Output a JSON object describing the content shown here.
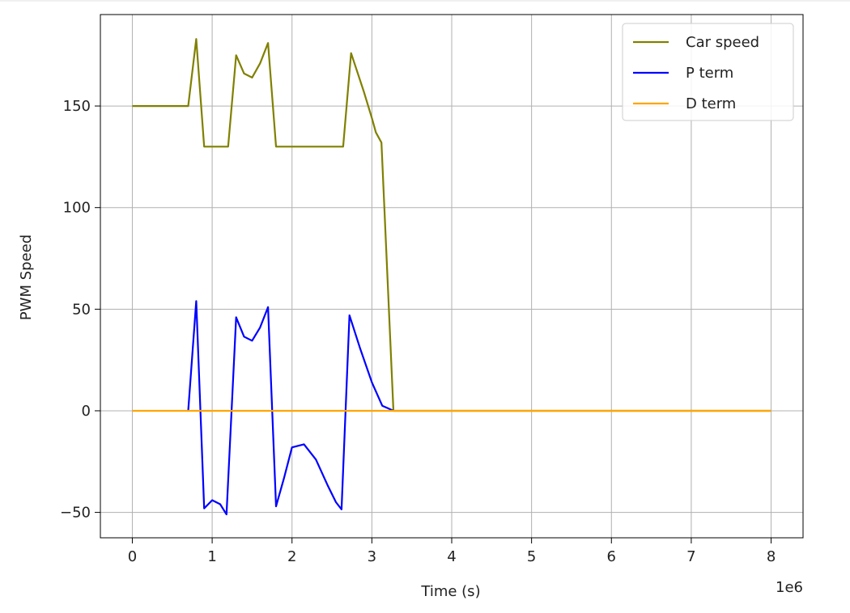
{
  "chart_data": {
    "type": "line",
    "xlabel": "Time  (s)",
    "ylabel": "PWM Speed",
    "x_offset_label": "1e6",
    "xlim": [
      -0.4,
      8.4
    ],
    "ylim": [
      -62.5,
      195
    ],
    "x_ticks": [
      0,
      1,
      2,
      3,
      4,
      5,
      6,
      7,
      8
    ],
    "y_ticks": [
      -50,
      0,
      50,
      100,
      150
    ],
    "y_tick_labels": [
      "−50",
      "0",
      "50",
      "100",
      "150"
    ],
    "grid": true,
    "legend_position": "top-right",
    "series": [
      {
        "name": "Car speed",
        "color": "#808000",
        "points": [
          [
            0,
            150
          ],
          [
            0.7,
            150
          ],
          [
            0.8,
            183
          ],
          [
            0.9,
            130
          ],
          [
            1.2,
            130
          ],
          [
            1.3,
            175
          ],
          [
            1.4,
            166
          ],
          [
            1.5,
            164
          ],
          [
            1.6,
            171
          ],
          [
            1.7,
            181
          ],
          [
            1.8,
            130
          ],
          [
            2.64,
            130
          ],
          [
            2.74,
            176
          ],
          [
            2.9,
            157
          ],
          [
            3.0,
            144
          ],
          [
            3.05,
            137
          ],
          [
            3.12,
            132
          ],
          [
            3.27,
            0
          ],
          [
            8,
            0
          ]
        ]
      },
      {
        "name": "P term",
        "color": "#0000ff",
        "points": [
          [
            0.7,
            0
          ],
          [
            0.8,
            54
          ],
          [
            0.9,
            -48
          ],
          [
            1.0,
            -44
          ],
          [
            1.1,
            -46
          ],
          [
            1.18,
            -51
          ],
          [
            1.3,
            46
          ],
          [
            1.4,
            36.5
          ],
          [
            1.5,
            34.5
          ],
          [
            1.6,
            41
          ],
          [
            1.7,
            51
          ],
          [
            1.8,
            -47
          ],
          [
            1.9,
            -33
          ],
          [
            2.0,
            -18
          ],
          [
            2.15,
            -16.5
          ],
          [
            2.3,
            -24
          ],
          [
            2.45,
            -37
          ],
          [
            2.55,
            -45
          ],
          [
            2.62,
            -48.5
          ],
          [
            2.72,
            47
          ],
          [
            2.85,
            31
          ],
          [
            3.0,
            14
          ],
          [
            3.13,
            2.5
          ],
          [
            3.2,
            1.3
          ],
          [
            3.27,
            0
          ]
        ]
      },
      {
        "name": "D term",
        "color": "#ffa500",
        "points": [
          [
            0,
            0
          ],
          [
            8,
            0
          ]
        ]
      }
    ]
  }
}
